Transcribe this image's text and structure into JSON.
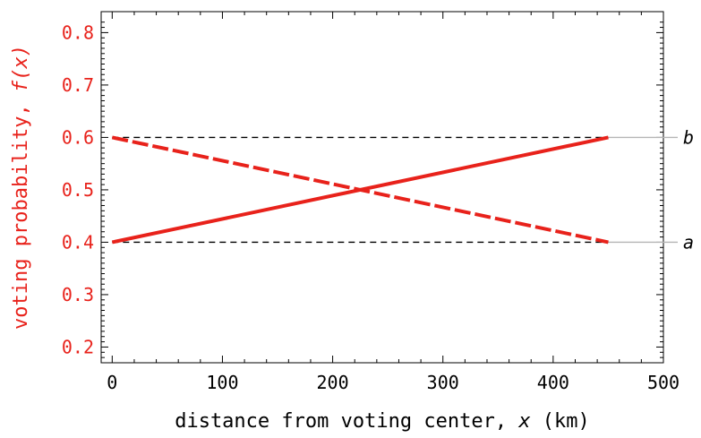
{
  "chart_data": {
    "type": "line",
    "xlabel": {
      "prefix": "distance from voting center, ",
      "var": "x",
      "suffix": " (km)"
    },
    "ylabel": {
      "prefix": "voting probability, ",
      "var": "f(x)"
    },
    "xlim": [
      -10,
      500
    ],
    "ylim": [
      0.17,
      0.84
    ],
    "x_ticks": [
      0,
      100,
      200,
      300,
      400,
      500
    ],
    "y_ticks": [
      0.2,
      0.3,
      0.4,
      0.5,
      0.6,
      0.7,
      0.8
    ],
    "grid": false,
    "series": [
      {
        "style": "solid",
        "color": "#e8221b",
        "x": [
          0,
          450
        ],
        "y": [
          0.4,
          0.6
        ]
      },
      {
        "style": "dashed",
        "color": "#e8221b",
        "x": [
          0,
          450
        ],
        "y": [
          0.6,
          0.4
        ]
      }
    ],
    "reference_lines": [
      {
        "y": 0.6,
        "label": "b"
      },
      {
        "y": 0.4,
        "label": "a"
      }
    ],
    "reference_line_x": [
      0,
      450
    ],
    "colors": {
      "accent": "#e8221b",
      "axis": "#000000",
      "reference": "#000000",
      "extension": "#b5b5b5"
    }
  }
}
